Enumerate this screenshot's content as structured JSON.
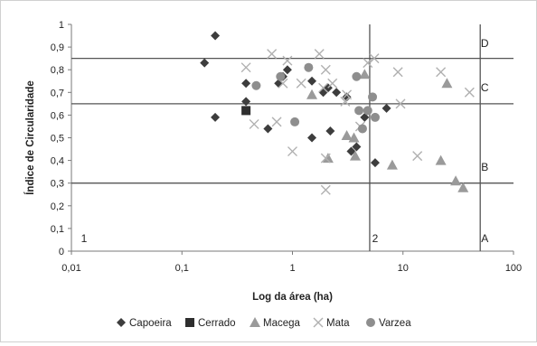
{
  "chart_data": {
    "type": "scatter",
    "xscale": "log",
    "xlim": [
      0.01,
      100
    ],
    "ylim": [
      0,
      1
    ],
    "grid": false,
    "legend_position": "bottom",
    "xlabel": "Log  da área (ha)",
    "ylabel": "Índice de Circularidade",
    "x_tick_labels": [
      "0,01",
      "0,1",
      "1",
      "10",
      "100"
    ],
    "x_tick_values": [
      0.01,
      0.1,
      1,
      10,
      100
    ],
    "y_tick_labels": [
      "0",
      "0,1",
      "0,2",
      "0,3",
      "0,4",
      "0,5",
      "0,6",
      "0,7",
      "0,8",
      "0,9",
      "1"
    ],
    "y_tick_values": [
      0,
      0.1,
      0.2,
      0.3,
      0.4,
      0.5,
      0.6,
      0.7,
      0.8,
      0.9,
      1
    ],
    "reference_lines": {
      "horizontal": [
        0.85,
        0.65,
        0.3
      ],
      "vertical": [
        5,
        50
      ]
    },
    "region_labels": [
      {
        "text": "D",
        "x": 55,
        "y": 0.9
      },
      {
        "text": "C",
        "x": 55,
        "y": 0.705
      },
      {
        "text": "B",
        "x": 55,
        "y": 0.355
      },
      {
        "text": "A",
        "x": 55,
        "y": 0.04
      },
      {
        "text": "1",
        "x": 0.013,
        "y": 0.04
      },
      {
        "text": "2",
        "x": 5.6,
        "y": 0.04
      }
    ],
    "series": [
      {
        "name": "Capoeira",
        "marker": "diamond",
        "color": "#3d3d3d",
        "points": [
          [
            0.16,
            0.83
          ],
          [
            0.2,
            0.95
          ],
          [
            0.2,
            0.59
          ],
          [
            0.38,
            0.74
          ],
          [
            0.38,
            0.66
          ],
          [
            0.6,
            0.54
          ],
          [
            0.75,
            0.74
          ],
          [
            0.82,
            0.77
          ],
          [
            0.9,
            0.8
          ],
          [
            1.5,
            0.75
          ],
          [
            1.5,
            0.5
          ],
          [
            1.9,
            0.7
          ],
          [
            2.1,
            0.72
          ],
          [
            2.2,
            0.53
          ],
          [
            2.5,
            0.7
          ],
          [
            3.1,
            0.68
          ],
          [
            3.4,
            0.44
          ],
          [
            3.8,
            0.46
          ],
          [
            4.5,
            0.59
          ],
          [
            5.6,
            0.39
          ],
          [
            7.1,
            0.63
          ]
        ]
      },
      {
        "name": "Cerrado",
        "marker": "square",
        "color": "#2e2e2e",
        "points": [
          [
            0.38,
            0.62
          ]
        ]
      },
      {
        "name": "Macega",
        "marker": "triangle",
        "color": "#9a9a9a",
        "points": [
          [
            1.5,
            0.69
          ],
          [
            2.1,
            0.41
          ],
          [
            3.1,
            0.51
          ],
          [
            3.6,
            0.5
          ],
          [
            3.7,
            0.42
          ],
          [
            4.5,
            0.78
          ],
          [
            8,
            0.38
          ],
          [
            22,
            0.4
          ],
          [
            25,
            0.74
          ],
          [
            30,
            0.31
          ],
          [
            35,
            0.28
          ]
        ]
      },
      {
        "name": "Mata",
        "marker": "x",
        "color": "#b0b0b0",
        "points": [
          [
            0.38,
            0.81
          ],
          [
            0.45,
            0.56
          ],
          [
            0.65,
            0.87
          ],
          [
            0.72,
            0.57
          ],
          [
            0.82,
            0.74
          ],
          [
            0.9,
            0.84
          ],
          [
            1.0,
            0.44
          ],
          [
            1.2,
            0.74
          ],
          [
            1.75,
            0.87
          ],
          [
            1.9,
            0.72
          ],
          [
            2.0,
            0.8
          ],
          [
            2.0,
            0.41
          ],
          [
            2.0,
            0.27
          ],
          [
            2.3,
            0.74
          ],
          [
            3.0,
            0.66
          ],
          [
            3.1,
            0.69
          ],
          [
            4.1,
            0.55
          ],
          [
            4.8,
            0.83
          ],
          [
            5.5,
            0.85
          ],
          [
            9,
            0.79
          ],
          [
            9.5,
            0.65
          ],
          [
            13.5,
            0.42
          ],
          [
            22,
            0.79
          ],
          [
            40,
            0.7
          ]
        ]
      },
      {
        "name": "Varzea",
        "marker": "circle",
        "color": "#8e8e8e",
        "points": [
          [
            0.47,
            0.73
          ],
          [
            0.78,
            0.77
          ],
          [
            1.05,
            0.57
          ],
          [
            1.4,
            0.81
          ],
          [
            3.8,
            0.77
          ],
          [
            4.0,
            0.62
          ],
          [
            4.3,
            0.54
          ],
          [
            4.8,
            0.62
          ],
          [
            5.3,
            0.68
          ],
          [
            5.6,
            0.59
          ]
        ]
      }
    ]
  }
}
